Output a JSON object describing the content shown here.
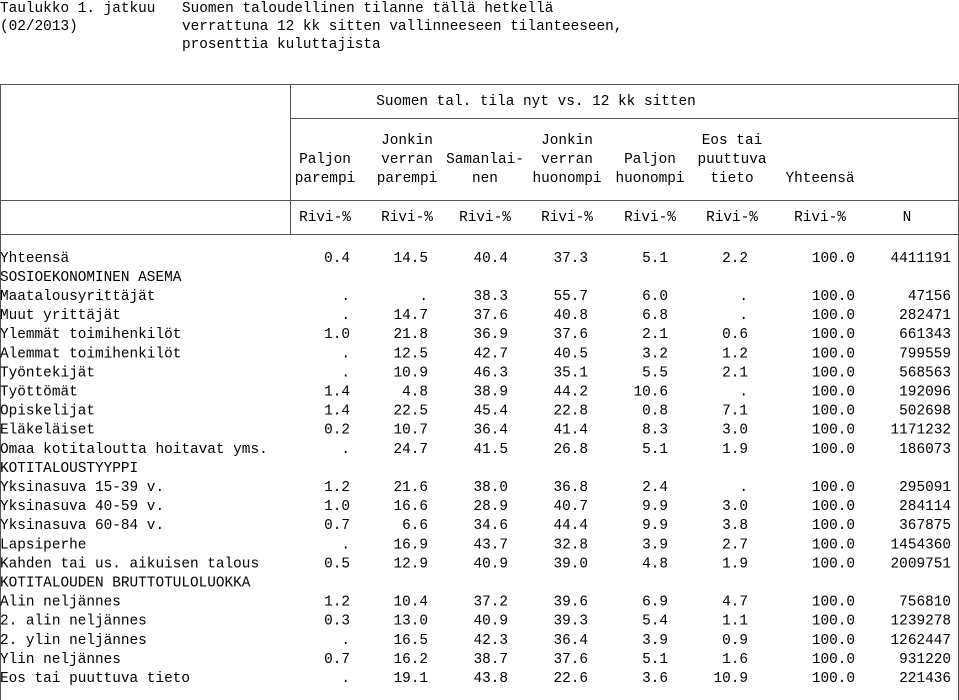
{
  "title": {
    "left": [
      "Taulukko 1. jatkuu",
      "(02/2013)"
    ],
    "right": [
      "Suomen taloudellinen tilanne tällä hetkellä",
      "verrattuna 12 kk sitten vallinneeseen tilanteeseen,",
      "prosenttia kuluttajista"
    ]
  },
  "table": {
    "group_header": "Suomen tal. tila nyt vs. 12 kk sitten",
    "columns": [
      [
        "Paljon",
        "parempi"
      ],
      [
        "Jonkin",
        "verran",
        "parempi"
      ],
      [
        "Samanlai-",
        "nen"
      ],
      [
        "Jonkin",
        "verran",
        "huonompi"
      ],
      [
        "Paljon",
        "huonompi"
      ],
      [
        "Eos tai",
        "puuttuva",
        "tieto"
      ],
      [
        "Yhteensä"
      ]
    ],
    "units": [
      "Rivi-%",
      "Rivi-%",
      "Rivi-%",
      "Rivi-%",
      "Rivi-%",
      "Rivi-%",
      "Rivi-%",
      "N"
    ],
    "rows": [
      [
        "Yhteensä",
        "0.4",
        "14.5",
        "40.4",
        "37.3",
        "5.1",
        "2.2",
        "100.0",
        "4411191"
      ],
      [
        "SOSIOEKONOMINEN ASEMA"
      ],
      [
        "Maatalousyrittäjät",
        ".",
        ".",
        "38.3",
        "55.7",
        "6.0",
        ".",
        "100.0",
        "47156"
      ],
      [
        "Muut yrittäjät",
        ".",
        "14.7",
        "37.6",
        "40.8",
        "6.8",
        ".",
        "100.0",
        "282471"
      ],
      [
        "Ylemmät toimihenkilöt",
        "1.0",
        "21.8",
        "36.9",
        "37.6",
        "2.1",
        "0.6",
        "100.0",
        "661343"
      ],
      [
        "Alemmat toimihenkilöt",
        ".",
        "12.5",
        "42.7",
        "40.5",
        "3.2",
        "1.2",
        "100.0",
        "799559"
      ],
      [
        "Työntekijät",
        ".",
        "10.9",
        "46.3",
        "35.1",
        "5.5",
        "2.1",
        "100.0",
        "568563"
      ],
      [
        "Työttömät",
        "1.4",
        "4.8",
        "38.9",
        "44.2",
        "10.6",
        ".",
        "100.0",
        "192096"
      ],
      [
        "Opiskelijat",
        "1.4",
        "22.5",
        "45.4",
        "22.8",
        "0.8",
        "7.1",
        "100.0",
        "502698"
      ],
      [
        "Eläkeläiset",
        "0.2",
        "10.7",
        "36.4",
        "41.4",
        "8.3",
        "3.0",
        "100.0",
        "1171232"
      ],
      [
        "Omaa kotitaloutta hoitavat yms.",
        ".",
        "24.7",
        "41.5",
        "26.8",
        "5.1",
        "1.9",
        "100.0",
        "186073"
      ],
      [
        "KOTITALOUSTYYPPI"
      ],
      [
        "Yksinasuva 15-39 v.",
        "1.2",
        "21.6",
        "38.0",
        "36.8",
        "2.4",
        ".",
        "100.0",
        "295091"
      ],
      [
        "Yksinasuva 40-59 v.",
        "1.0",
        "16.6",
        "28.9",
        "40.7",
        "9.9",
        "3.0",
        "100.0",
        "284114"
      ],
      [
        "Yksinasuva 60-84 v.",
        "0.7",
        "6.6",
        "34.6",
        "44.4",
        "9.9",
        "3.8",
        "100.0",
        "367875"
      ],
      [
        "Lapsiperhe",
        ".",
        "16.9",
        "43.7",
        "32.8",
        "3.9",
        "2.7",
        "100.0",
        "1454360"
      ],
      [
        "Kahden tai us. aikuisen talous",
        "0.5",
        "12.9",
        "40.9",
        "39.0",
        "4.8",
        "1.9",
        "100.0",
        "2009751"
      ],
      [
        "KOTITALOUDEN BRUTTOTULOLUOKKA"
      ],
      [
        "Alin neljännes",
        "1.2",
        "10.4",
        "37.2",
        "39.6",
        "6.9",
        "4.7",
        "100.0",
        "756810"
      ],
      [
        "2. alin neljännes",
        "0.3",
        "13.0",
        "40.9",
        "39.3",
        "5.4",
        "1.1",
        "100.0",
        "1239278"
      ],
      [
        "2. ylin neljännes",
        ".",
        "16.5",
        "42.3",
        "36.4",
        "3.9",
        "0.9",
        "100.0",
        "1262447"
      ],
      [
        "Ylin neljännes",
        "0.7",
        "16.2",
        "38.7",
        "37.6",
        "5.1",
        "1.6",
        "100.0",
        "931220"
      ],
      [
        "Eos tai puuttuva tieto",
        ".",
        "19.1",
        "43.8",
        "22.6",
        "3.6",
        "10.9",
        "100.0",
        "221436"
      ]
    ]
  }
}
